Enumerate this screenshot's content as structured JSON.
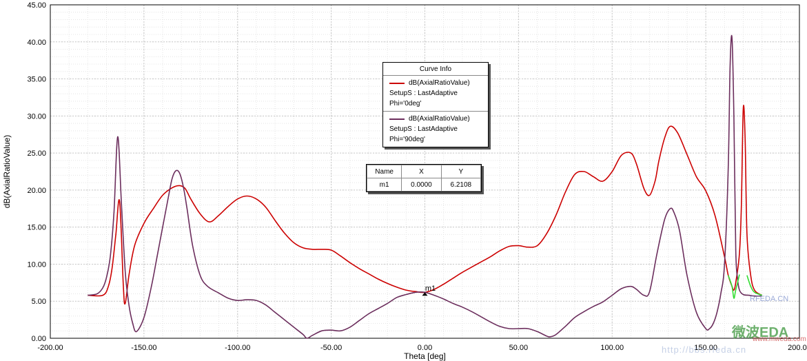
{
  "chart_data": {
    "type": "line",
    "xlabel": "Theta [deg]",
    "ylabel": "dB(AxialRatioValue)",
    "xlim": [
      -200,
      200
    ],
    "ylim": [
      0,
      45
    ],
    "xticks": [
      -200,
      -150,
      -100,
      -50,
      0,
      50,
      100,
      150,
      200
    ],
    "yticks": [
      0,
      5,
      10,
      15,
      20,
      25,
      30,
      35,
      40,
      45
    ],
    "xtick_labels": [
      "-200.00",
      "-150.00",
      "-100.00",
      "-50.00",
      "0.00",
      "50.00",
      "100.00",
      "150.00",
      "200.00"
    ],
    "ytick_labels": [
      "0.00",
      "5.00",
      "10.00",
      "15.00",
      "20.00",
      "25.00",
      "30.00",
      "35.00",
      "40.00",
      "45.00"
    ],
    "grid": true,
    "series": [
      {
        "name": "dB(AxialRatioValue) SetupS : LastAdaptive Phi='0deg'",
        "color": "#cc0000",
        "x": [
          -180,
          -172,
          -169,
          -167,
          -165,
          -163,
          -161,
          -160,
          -158,
          -155,
          -150,
          -145,
          -140,
          -135,
          -131,
          -128,
          -125,
          -120,
          -115,
          -110,
          -105,
          -100,
          -95,
          -90,
          -85,
          -80,
          -75,
          -70,
          -65,
          -60,
          -55,
          -50,
          -45,
          -40,
          -35,
          -30,
          -25,
          -20,
          -15,
          -10,
          -5,
          0,
          5,
          10,
          15,
          20,
          25,
          30,
          35,
          40,
          45,
          50,
          55,
          60,
          65,
          70,
          75,
          80,
          85,
          90,
          95,
          100,
          105,
          110,
          113,
          117,
          120,
          123,
          125,
          128,
          131,
          135,
          140,
          145,
          150,
          155,
          160,
          162,
          164,
          165,
          166,
          168,
          169,
          170,
          171,
          172,
          174,
          176,
          180
        ],
        "y": [
          5.8,
          5.8,
          7.0,
          9.5,
          14.0,
          18.5,
          7.0,
          4.7,
          8.5,
          12.5,
          15.5,
          17.5,
          19.3,
          20.3,
          20.6,
          20.2,
          18.8,
          16.8,
          15.7,
          16.6,
          17.8,
          18.8,
          19.2,
          18.8,
          17.7,
          15.9,
          14.2,
          12.9,
          12.2,
          12.0,
          12.0,
          11.9,
          11.1,
          10.2,
          9.4,
          8.7,
          8.0,
          7.4,
          6.9,
          6.5,
          6.3,
          6.2,
          6.6,
          7.3,
          8.1,
          8.9,
          9.6,
          10.3,
          11.0,
          11.8,
          12.4,
          12.5,
          12.3,
          12.5,
          14.1,
          16.6,
          19.7,
          22.1,
          22.5,
          21.8,
          21.2,
          22.5,
          24.7,
          25.0,
          23.5,
          20.2,
          19.3,
          21.3,
          24.0,
          27.0,
          28.6,
          27.7,
          24.8,
          21.8,
          19.9,
          16.5,
          11.0,
          8.5,
          7.0,
          6.5,
          7.5,
          11.5,
          18.0,
          31.0,
          27.0,
          14.0,
          8.5,
          6.5,
          5.8
        ]
      },
      {
        "name": "dB(AxialRatioValue) SetupS : LastAdaptive Phi='90deg'",
        "color": "#6b2d5c",
        "x": [
          -180,
          -175,
          -172,
          -170,
          -168,
          -166,
          -164,
          -162,
          -160,
          -158,
          -156,
          -154,
          -150,
          -146,
          -143,
          -140,
          -137,
          -135,
          -133,
          -131,
          -129,
          -127,
          -124,
          -120,
          -116,
          -110,
          -105,
          -100,
          -95,
          -90,
          -85,
          -80,
          -75,
          -70,
          -65,
          -63,
          -60,
          -55,
          -50,
          -45,
          -40,
          -35,
          -30,
          -25,
          -20,
          -15,
          -10,
          -5,
          0,
          5,
          10,
          15,
          20,
          25,
          30,
          35,
          40,
          45,
          50,
          55,
          60,
          65,
          67,
          70,
          75,
          80,
          85,
          90,
          95,
          100,
          105,
          110,
          113,
          117,
          120,
          124,
          128,
          131,
          133,
          136,
          140,
          145,
          150,
          152,
          154,
          156,
          158,
          160,
          162,
          163,
          164,
          165,
          166,
          167,
          168,
          170,
          173,
          176,
          180
        ],
        "y": [
          5.8,
          6.0,
          6.8,
          8.2,
          11.0,
          17.0,
          27.2,
          18.0,
          9.0,
          4.5,
          2.0,
          0.9,
          2.8,
          7.0,
          11.0,
          15.0,
          19.0,
          21.5,
          22.6,
          22.3,
          20.5,
          17.5,
          12.5,
          8.5,
          7.0,
          6.1,
          5.4,
          5.1,
          5.2,
          5.1,
          4.5,
          3.5,
          2.5,
          1.5,
          0.5,
          0.0,
          0.4,
          1.0,
          1.1,
          1.0,
          1.5,
          2.4,
          3.3,
          4.0,
          4.7,
          5.5,
          5.9,
          6.2,
          6.2,
          5.8,
          5.3,
          4.7,
          4.2,
          3.6,
          2.9,
          2.2,
          1.6,
          1.3,
          1.3,
          1.3,
          0.9,
          0.3,
          0.2,
          0.5,
          1.6,
          2.8,
          3.6,
          4.3,
          4.9,
          5.8,
          6.7,
          7.0,
          6.6,
          5.8,
          6.3,
          11.5,
          16.0,
          17.5,
          17.0,
          14.5,
          8.5,
          3.5,
          1.3,
          1.3,
          2.0,
          3.5,
          6.0,
          10.0,
          23.0,
          37.0,
          40.5,
          30.0,
          12.0,
          8.0,
          6.5,
          5.9,
          5.8,
          5.7,
          5.7
        ]
      },
      {
        "name": "",
        "color": "#33dd33",
        "x": [
          162,
          164,
          165,
          166,
          168
        ],
        "y": [
          8.5,
          7.0,
          5.4,
          6.5,
          8.6
        ]
      },
      {
        "name": "",
        "color": "#33dd33",
        "x": [
          172,
          174,
          176,
          180
        ],
        "y": [
          8.5,
          7.0,
          6.2,
          5.8
        ]
      }
    ],
    "marker": {
      "label": "m1",
      "x": 0,
      "y": 6.2108
    }
  },
  "legend": {
    "title": "Curve Info",
    "entries": [
      {
        "line1": "dB(AxialRatioValue)",
        "line2": "SetupS : LastAdaptive",
        "line3": "Phi='0deg'",
        "color": "#cc0000"
      },
      {
        "line1": "dB(AxialRatioValue)",
        "line2": "SetupS : LastAdaptive",
        "line3": "Phi='90deg'",
        "color": "#6b2d5c"
      }
    ]
  },
  "marker_table": {
    "headers": [
      "Name",
      "X",
      "Y"
    ],
    "row": [
      "m1",
      "0.0000",
      "6.2108"
    ]
  },
  "watermark": {
    "site": "RFEDA.CN",
    "brand": "微波EDA",
    "brand_url": "www.mweda.com",
    "bbs_url": "http://bbs.rfeda.cn"
  }
}
